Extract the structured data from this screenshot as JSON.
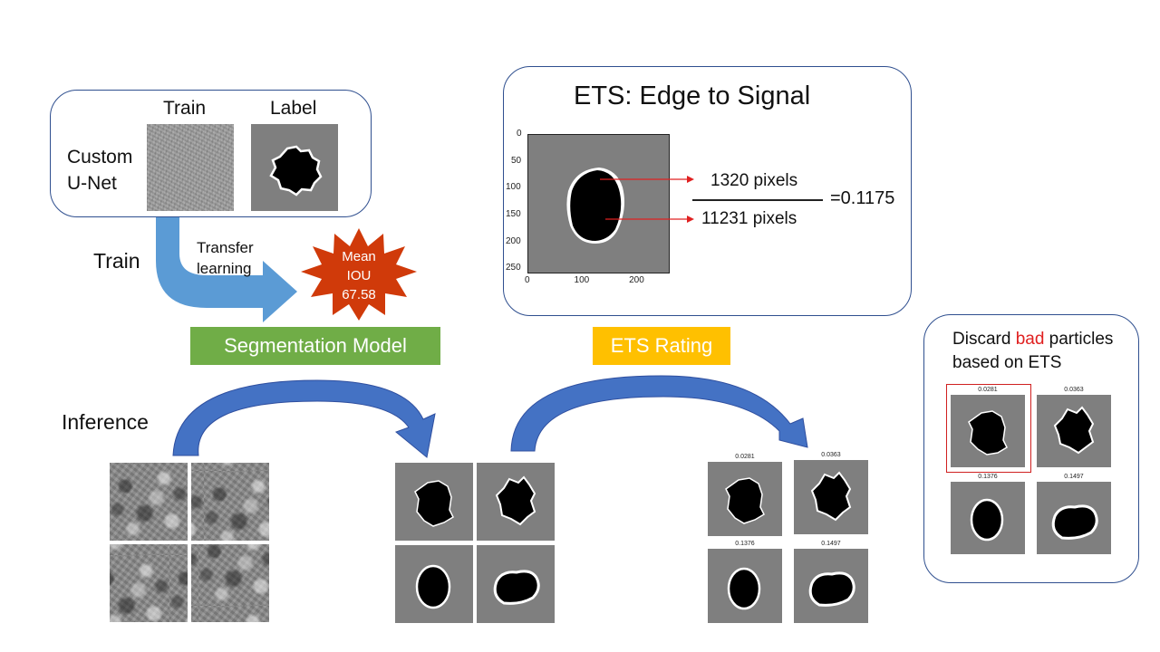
{
  "training": {
    "model_label": "Custom\nU-Net",
    "train_header": "Train",
    "label_header": "Label",
    "train_arrow_label": "Train",
    "transfer_label": "Transfer\nlearning",
    "badge": "Mean\nIOU\n67.58"
  },
  "segmentation_model": {
    "label": "Segmentation Model",
    "color": "#70ad47"
  },
  "ets_rating": {
    "label": "ETS Rating",
    "color": "#ffc000"
  },
  "ets_panel": {
    "title": "ETS: Edge to Signal",
    "numerator": "1320 pixels",
    "denominator": "11231 pixels",
    "result": "=0.1175",
    "y_ticks": [
      "0",
      "50",
      "100",
      "150",
      "200",
      "250"
    ],
    "x_ticks": [
      "0",
      "100",
      "200"
    ]
  },
  "inference": {
    "label": "Inference"
  },
  "ets_scores": [
    "0.0281",
    "0.0363",
    "0.1376",
    "0.1497"
  ],
  "discard_panel": {
    "text_before": "Discard ",
    "text_highlight": "bad",
    "text_after": " particles",
    "line2": "based on ETS",
    "highlight_color": "#e02020"
  },
  "colors": {
    "arrow_blue": "#4472c4",
    "arrow_dark": "#2f4f9f",
    "train_arrow": "#5b9bd5",
    "badge_fill": "#d03a0a",
    "pointer_red": "#e02020"
  }
}
